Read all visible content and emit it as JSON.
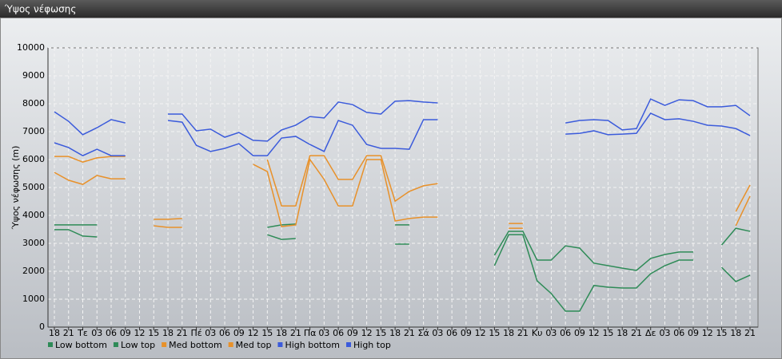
{
  "chart_data": {
    "type": "line",
    "title": "Ύψος νέφωσης",
    "ylabel": "Ύψος νέφωσης (m)",
    "categories": [
      "18",
      "21",
      "Τε",
      "03",
      "06",
      "09",
      "12",
      "15",
      "18",
      "21",
      "Πέ",
      "03",
      "06",
      "09",
      "12",
      "15",
      "18",
      "21",
      "Πα",
      "03",
      "06",
      "09",
      "12",
      "15",
      "18",
      "21",
      "Σά",
      "03",
      "06",
      "09",
      "12",
      "15",
      "18",
      "21",
      "Κυ",
      "03",
      "06",
      "09",
      "12",
      "15",
      "18",
      "21",
      "Δε",
      "03",
      "06",
      "09",
      "12",
      "15",
      "18",
      "21"
    ],
    "ylim": [
      0,
      10000
    ],
    "yticks": [
      0,
      1000,
      2000,
      3000,
      4000,
      5000,
      6000,
      7000,
      8000,
      9000,
      10000
    ],
    "grid": true,
    "series": [
      {
        "name": "Low bottom",
        "color": "#2e8b57",
        "values": [
          3490,
          3490,
          3260,
          3230,
          null,
          null,
          null,
          null,
          null,
          null,
          null,
          null,
          null,
          null,
          null,
          3310,
          3140,
          3170,
          null,
          null,
          null,
          null,
          null,
          null,
          2970,
          2970,
          null,
          null,
          null,
          null,
          null,
          2200,
          3310,
          3310,
          1660,
          1200,
          570,
          570,
          1490,
          1430,
          1400,
          1400,
          1910,
          2200,
          2400,
          2400,
          null,
          2140,
          1630,
          1860
        ]
      },
      {
        "name": "Low top",
        "color": "#2e8b57",
        "values": [
          3660,
          3660,
          3660,
          3660,
          null,
          null,
          null,
          null,
          null,
          null,
          null,
          null,
          null,
          null,
          null,
          3570,
          3660,
          3690,
          null,
          null,
          null,
          null,
          null,
          null,
          3660,
          3660,
          null,
          null,
          null,
          null,
          null,
          2570,
          3430,
          3430,
          2400,
          2400,
          2910,
          2830,
          2290,
          2200,
          2110,
          2030,
          2460,
          2600,
          2690,
          2690,
          null,
          2940,
          3540,
          3430
        ]
      },
      {
        "name": "Med bottom",
        "color": "#e8912a",
        "values": [
          5540,
          5260,
          5110,
          5430,
          5310,
          5310,
          null,
          3630,
          3570,
          3570,
          null,
          null,
          null,
          null,
          5830,
          5570,
          3600,
          3660,
          6000,
          5290,
          4340,
          4340,
          6000,
          6000,
          3800,
          3890,
          3940,
          3940,
          null,
          null,
          null,
          null,
          3540,
          3540,
          null,
          null,
          null,
          null,
          null,
          null,
          null,
          null,
          null,
          null,
          null,
          null,
          null,
          null,
          3630,
          4690
        ]
      },
      {
        "name": "Med top",
        "color": "#e8912a",
        "values": [
          6110,
          6110,
          5910,
          6060,
          6110,
          6110,
          null,
          3860,
          3860,
          3890,
          null,
          null,
          null,
          null,
          null,
          6000,
          4340,
          4340,
          6140,
          6140,
          5290,
          5290,
          6140,
          6140,
          4510,
          4860,
          5060,
          5140,
          null,
          null,
          null,
          null,
          3710,
          3710,
          null,
          null,
          null,
          null,
          null,
          null,
          null,
          null,
          null,
          null,
          null,
          null,
          null,
          null,
          4140,
          5090
        ]
      },
      {
        "name": "High bottom",
        "color": "#3b5bdb",
        "values": [
          6600,
          6430,
          6140,
          6370,
          6140,
          6140,
          null,
          null,
          7400,
          7340,
          6510,
          6290,
          6400,
          6570,
          6140,
          6140,
          6770,
          6830,
          6540,
          6290,
          7400,
          7230,
          6540,
          6400,
          6400,
          6370,
          7430,
          7430,
          null,
          null,
          null,
          null,
          null,
          null,
          null,
          null,
          6910,
          6940,
          7030,
          6890,
          6910,
          6940,
          7660,
          7430,
          7460,
          7370,
          7230,
          7200,
          7110,
          6860
        ]
      },
      {
        "name": "High top",
        "color": "#3b5bdb",
        "values": [
          7710,
          7370,
          6890,
          7140,
          7430,
          7310,
          null,
          null,
          7630,
          7630,
          7030,
          7090,
          6800,
          6970,
          6690,
          6660,
          7060,
          7230,
          7540,
          7490,
          8060,
          7970,
          7690,
          7630,
          8090,
          8110,
          8060,
          8030,
          null,
          null,
          null,
          null,
          null,
          null,
          null,
          null,
          7310,
          7400,
          7430,
          7400,
          7060,
          7110,
          8170,
          7940,
          8140,
          8110,
          7890,
          7890,
          7940,
          7570
        ]
      }
    ]
  }
}
